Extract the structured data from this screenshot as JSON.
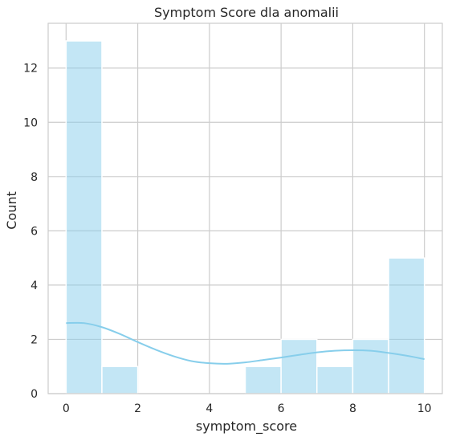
{
  "chart_data": {
    "type": "bar",
    "title": "Symptom Score dla anomalii",
    "xlabel": "symptom_score",
    "ylabel": "Count",
    "bin_edges": [
      0,
      1,
      2,
      3,
      4,
      5,
      6,
      7,
      8,
      9,
      10
    ],
    "values": [
      13,
      1,
      0,
      0,
      0,
      1,
      2,
      1,
      2,
      5
    ],
    "xlim": [
      -0.5,
      10.5
    ],
    "ylim": [
      0,
      13.65
    ],
    "xticks": [
      0,
      2,
      4,
      6,
      8,
      10
    ],
    "yticks": [
      0,
      2,
      4,
      6,
      8,
      10,
      12
    ],
    "grid": true,
    "bar_color": "#87ceeb",
    "kde": {
      "x": [
        0,
        0.5,
        1,
        1.5,
        2,
        2.5,
        3,
        3.5,
        4,
        4.5,
        5,
        5.5,
        6,
        6.5,
        7,
        7.5,
        8,
        8.5,
        9,
        9.5,
        10
      ],
      "y": [
        2.6,
        2.6,
        2.45,
        2.2,
        1.9,
        1.62,
        1.38,
        1.2,
        1.12,
        1.1,
        1.15,
        1.24,
        1.33,
        1.43,
        1.52,
        1.58,
        1.6,
        1.58,
        1.5,
        1.4,
        1.27
      ],
      "color": "#87ceeb"
    }
  }
}
